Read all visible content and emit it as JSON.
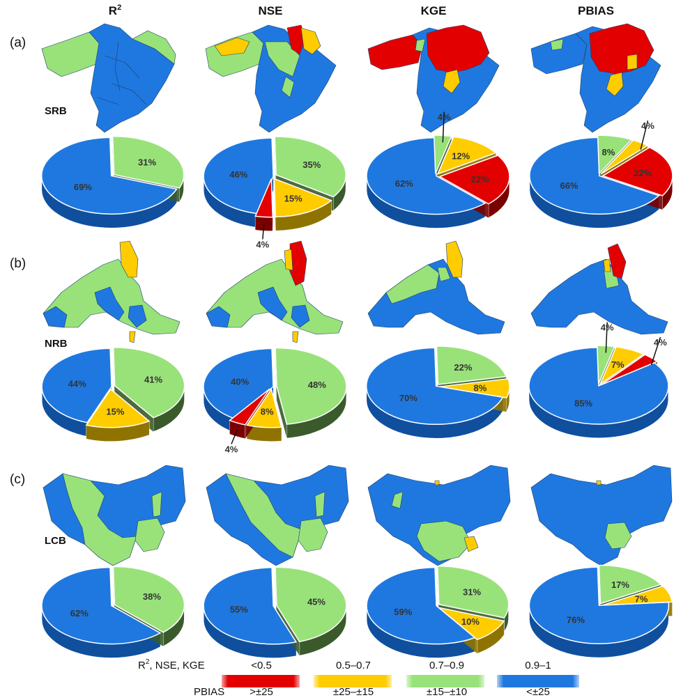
{
  "headers": {
    "r2": "R",
    "r2_sup": "2",
    "nse": "NSE",
    "kge": "KGE",
    "pbias": "PBIAS"
  },
  "rows": [
    {
      "tag": "(a)",
      "basin": "SRB"
    },
    {
      "tag": "(b)",
      "basin": "NRB"
    },
    {
      "tag": "(c)",
      "basin": "LCB"
    }
  ],
  "colors": {
    "red": "#e30000",
    "yellow": "#ffcc00",
    "green": "#99e27a",
    "blue": "#1f78e0"
  },
  "chart_data": {
    "type": "pie",
    "metrics": [
      "R²",
      "NSE",
      "KGE",
      "PBIAS"
    ],
    "basins": [
      "SRB",
      "NRB",
      "LCB"
    ],
    "categories": [
      "<0.5 / >±25",
      "0.5–0.7 / ±25–±15",
      "0.7–0.9 / ±15–±10",
      "0.9–1 / <±25"
    ],
    "pies": [
      {
        "basin": "SRB",
        "metric": "R²",
        "slices": [
          {
            "class": "blue",
            "value": 69,
            "label": "69%"
          },
          {
            "class": "green",
            "value": 31,
            "label": "31%"
          }
        ]
      },
      {
        "basin": "SRB",
        "metric": "NSE",
        "slices": [
          {
            "class": "blue",
            "value": 46,
            "label": "46%"
          },
          {
            "class": "green",
            "value": 35,
            "label": "35%"
          },
          {
            "class": "yellow",
            "value": 15,
            "label": "15%"
          },
          {
            "class": "red",
            "value": 4,
            "label": "4%"
          }
        ]
      },
      {
        "basin": "SRB",
        "metric": "KGE",
        "slices": [
          {
            "class": "blue",
            "value": 62,
            "label": "62%"
          },
          {
            "class": "green",
            "value": 4,
            "label": "4%"
          },
          {
            "class": "yellow",
            "value": 12,
            "label": "12%"
          },
          {
            "class": "red",
            "value": 22,
            "label": "22%"
          }
        ]
      },
      {
        "basin": "SRB",
        "metric": "PBIAS",
        "slices": [
          {
            "class": "blue",
            "value": 66,
            "label": "66%"
          },
          {
            "class": "green",
            "value": 8,
            "label": "8%"
          },
          {
            "class": "yellow",
            "value": 4,
            "label": "4%"
          },
          {
            "class": "red",
            "value": 22,
            "label": "22%"
          }
        ]
      },
      {
        "basin": "NRB",
        "metric": "R²",
        "slices": [
          {
            "class": "blue",
            "value": 44,
            "label": "44%"
          },
          {
            "class": "green",
            "value": 41,
            "label": "41%"
          },
          {
            "class": "yellow",
            "value": 15,
            "label": "15%"
          }
        ]
      },
      {
        "basin": "NRB",
        "metric": "NSE",
        "slices": [
          {
            "class": "blue",
            "value": 40,
            "label": "40%"
          },
          {
            "class": "green",
            "value": 48,
            "label": "48%"
          },
          {
            "class": "yellow",
            "value": 8,
            "label": "8%"
          },
          {
            "class": "red",
            "value": 4,
            "label": "4%"
          }
        ]
      },
      {
        "basin": "NRB",
        "metric": "KGE",
        "slices": [
          {
            "class": "blue",
            "value": 70,
            "label": "70%"
          },
          {
            "class": "green",
            "value": 22,
            "label": "22%"
          },
          {
            "class": "yellow",
            "value": 8,
            "label": "8%"
          }
        ]
      },
      {
        "basin": "NRB",
        "metric": "PBIAS",
        "slices": [
          {
            "class": "blue",
            "value": 85,
            "label": "85%"
          },
          {
            "class": "green",
            "value": 4,
            "label": "4%"
          },
          {
            "class": "yellow",
            "value": 7,
            "label": "7%"
          },
          {
            "class": "red",
            "value": 4,
            "label": "4%"
          }
        ]
      },
      {
        "basin": "LCB",
        "metric": "R²",
        "slices": [
          {
            "class": "blue",
            "value": 62,
            "label": "62%"
          },
          {
            "class": "green",
            "value": 38,
            "label": "38%"
          }
        ]
      },
      {
        "basin": "LCB",
        "metric": "NSE",
        "slices": [
          {
            "class": "blue",
            "value": 55,
            "label": "55%"
          },
          {
            "class": "green",
            "value": 45,
            "label": "45%"
          }
        ]
      },
      {
        "basin": "LCB",
        "metric": "KGE",
        "slices": [
          {
            "class": "blue",
            "value": 59,
            "label": "59%"
          },
          {
            "class": "green",
            "value": 31,
            "label": "31%"
          },
          {
            "class": "yellow",
            "value": 10,
            "label": "10%"
          }
        ]
      },
      {
        "basin": "LCB",
        "metric": "PBIAS",
        "slices": [
          {
            "class": "blue",
            "value": 76,
            "label": "76%"
          },
          {
            "class": "green",
            "value": 17,
            "label": "17%"
          },
          {
            "class": "yellow",
            "value": 7,
            "label": "7%"
          }
        ]
      }
    ]
  },
  "legend": {
    "row1_label": "R",
    "row1_sup": "2",
    "row1_rest": ", NSE, KGE",
    "row2_label": "PBIAS",
    "items": [
      {
        "class": "red",
        "top": "<0.5",
        "bottom": ">±25"
      },
      {
        "class": "yellow",
        "top": "0.5–0.7",
        "bottom": "±25–±15"
      },
      {
        "class": "green",
        "top": "0.7–0.9",
        "bottom": "±15–±10"
      },
      {
        "class": "blue",
        "top": "0.9–1",
        "bottom": "<±25"
      }
    ]
  }
}
